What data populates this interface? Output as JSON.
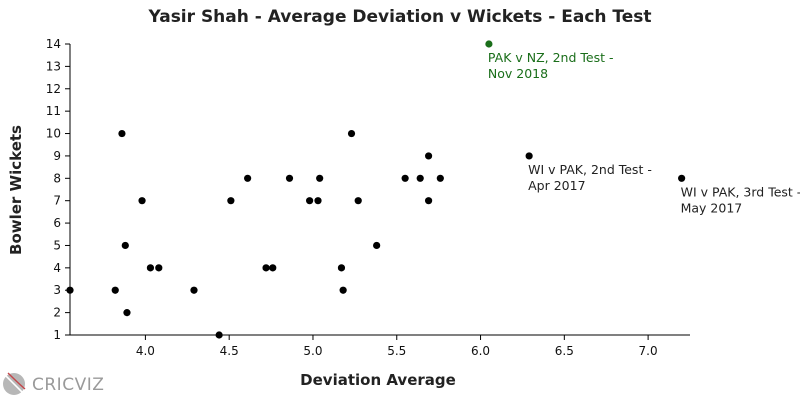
{
  "brand": {
    "name": "CRICVIZ"
  },
  "chart_data": {
    "type": "scatter",
    "title": "Yasir Shah - Average Deviation v Wickets - Each Test",
    "xlabel": "Deviation Average",
    "ylabel": "Bowler Wickets",
    "xlim": [
      3.55,
      7.25
    ],
    "ylim": [
      1,
      14
    ],
    "xticks": [
      "4.0",
      "4.5",
      "5.0",
      "5.5",
      "6.0",
      "6.5",
      "7.0"
    ],
    "yticks": [
      "1",
      "2",
      "3",
      "4",
      "5",
      "6",
      "7",
      "8",
      "9",
      "10",
      "11",
      "12",
      "13",
      "14"
    ],
    "grid": false,
    "colors": {
      "default_point": "#000000",
      "highlight_point": "#1a6e1a",
      "highlight_text": "#1a6e1a",
      "annotation_text": "#222222"
    },
    "points": [
      {
        "x": 3.55,
        "y": 3
      },
      {
        "x": 3.82,
        "y": 3
      },
      {
        "x": 3.86,
        "y": 10
      },
      {
        "x": 3.88,
        "y": 5
      },
      {
        "x": 3.89,
        "y": 2
      },
      {
        "x": 3.98,
        "y": 7
      },
      {
        "x": 4.03,
        "y": 4
      },
      {
        "x": 4.08,
        "y": 4
      },
      {
        "x": 4.29,
        "y": 3
      },
      {
        "x": 4.44,
        "y": 1
      },
      {
        "x": 4.51,
        "y": 7
      },
      {
        "x": 4.61,
        "y": 8
      },
      {
        "x": 4.72,
        "y": 4
      },
      {
        "x": 4.76,
        "y": 4
      },
      {
        "x": 4.86,
        "y": 8
      },
      {
        "x": 4.98,
        "y": 7
      },
      {
        "x": 5.03,
        "y": 7
      },
      {
        "x": 5.04,
        "y": 8
      },
      {
        "x": 5.17,
        "y": 4
      },
      {
        "x": 5.18,
        "y": 3
      },
      {
        "x": 5.23,
        "y": 10
      },
      {
        "x": 5.27,
        "y": 7
      },
      {
        "x": 5.38,
        "y": 5
      },
      {
        "x": 5.55,
        "y": 8
      },
      {
        "x": 5.64,
        "y": 8
      },
      {
        "x": 5.69,
        "y": 9
      },
      {
        "x": 5.69,
        "y": 7
      },
      {
        "x": 5.76,
        "y": 8
      },
      {
        "x": 6.05,
        "y": 14,
        "highlight": true,
        "label_lines": [
          "PAK v NZ, 2nd Test -",
          "Nov 2018"
        ]
      },
      {
        "x": 6.29,
        "y": 9,
        "label_lines": [
          "WI v PAK, 2nd Test -",
          "Apr 2017"
        ]
      },
      {
        "x": 7.2,
        "y": 8,
        "label_lines": [
          "WI v PAK, 3rd Test -",
          "May 2017"
        ]
      }
    ]
  }
}
